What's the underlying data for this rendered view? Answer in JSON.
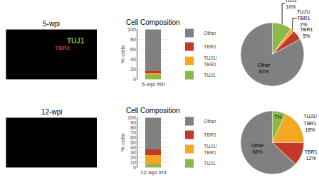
{
  "chart_data": [
    {
      "type": "image",
      "title": "5-wpi",
      "color": "#000000",
      "annotations": [
        "TUJ1",
        "TBR1"
      ],
      "colors": [
        "#8db84a",
        "#c0392b"
      ]
    },
    {
      "type": "bar",
      "stacked": true,
      "title": "Cell Composition",
      "ylabel": "% cells",
      "categories": [
        "5-wpi #III"
      ],
      "series": [
        {
          "name": "TUJ1",
          "color": "#8db84a",
          "values": [
            10
          ]
        },
        {
          "name": "TUJ1/\nTBR1",
          "color": "#f5a623",
          "values": [
            2
          ]
        },
        {
          "name": "TBR1",
          "color": "#c0392b",
          "values": [
            5
          ]
        },
        {
          "name": "Other",
          "color": "#808080",
          "values": [
            83
          ]
        }
      ],
      "ylim": [
        0,
        100
      ],
      "yticks": [
        0,
        20,
        40,
        60,
        80,
        100
      ],
      "grid": true,
      "legend": "right"
    },
    {
      "type": "pie",
      "categories": [
        "TUJ1",
        "TUJ1/\nTBR1",
        "TBR1",
        "Other"
      ],
      "values": [
        10,
        2,
        5,
        83
      ],
      "value_labels": [
        "10%",
        "2%",
        "5%",
        "83%"
      ],
      "colors": [
        "#8db84a",
        "#f5a623",
        "#c0392b",
        "#808080"
      ],
      "data_labels": true
    },
    {
      "type": "image",
      "title": "12-wpi",
      "color": "#000000"
    },
    {
      "type": "bar",
      "stacked": true,
      "title": "Cell Composition",
      "ylabel": "% cells",
      "categories": [
        "12-wpi #III"
      ],
      "series": [
        {
          "name": "TUJ1",
          "color": "#8db84a",
          "values": [
            7
          ]
        },
        {
          "name": "TUJ1/\nTBR1",
          "color": "#f5a623",
          "values": [
            18
          ]
        },
        {
          "name": "TBR1",
          "color": "#c0392b",
          "values": [
            12
          ]
        },
        {
          "name": "Other",
          "color": "#808080",
          "values": [
            63
          ]
        }
      ],
      "ylim": [
        0,
        100
      ],
      "yticks": [
        0,
        10,
        20,
        30,
        40,
        50,
        60,
        70,
        80,
        90,
        100
      ],
      "grid": true,
      "legend": "right"
    },
    {
      "type": "pie",
      "categories": [
        null,
        "TUJ1/\nTBR1",
        "TBR1",
        "Other"
      ],
      "values": [
        7,
        18,
        12,
        63
      ],
      "value_labels": [
        "7%",
        "18%",
        "12%",
        "63%"
      ],
      "colors": [
        "#8db84a",
        "#f5a623",
        "#c0392b",
        "#808080"
      ],
      "data_labels": true
    }
  ]
}
